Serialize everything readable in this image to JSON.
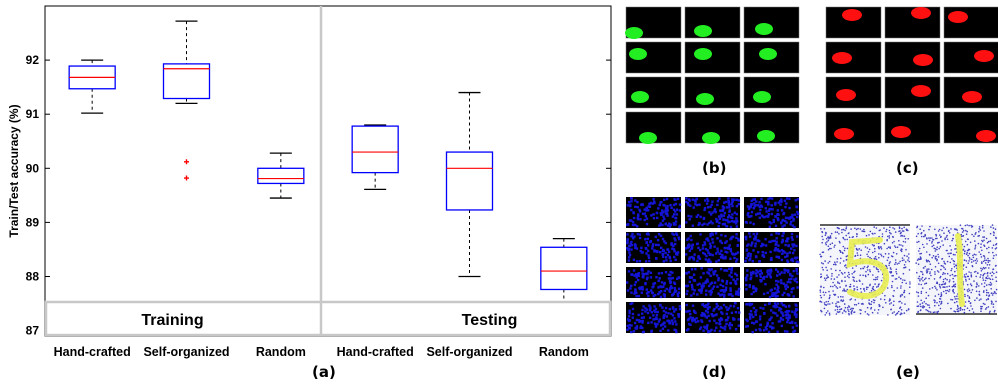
{
  "chart_data": {
    "type": "boxplot",
    "ylabel": "Train/Test accuracy (%)",
    "ylim": [
      86.9,
      93.0
    ],
    "yticks": [
      87,
      88,
      89,
      90,
      91,
      92
    ],
    "groups": [
      {
        "name": "Training",
        "categories": [
          "Hand-crafted",
          "Self-organized",
          "Random"
        ],
        "boxes": [
          {
            "min": 91.02,
            "q1": 91.47,
            "median": 91.68,
            "q3": 91.89,
            "max": 92.0,
            "outliers": []
          },
          {
            "min": 91.2,
            "q1": 91.29,
            "median": 91.84,
            "q3": 91.93,
            "max": 92.72,
            "outliers": [
              90.12,
              89.82
            ]
          },
          {
            "min": 89.45,
            "q1": 89.72,
            "median": 89.81,
            "q3": 90.0,
            "max": 90.28,
            "outliers": []
          }
        ]
      },
      {
        "name": "Testing",
        "categories": [
          "Hand-crafted",
          "Self-organized",
          "Random"
        ],
        "boxes": [
          {
            "min": 89.61,
            "q1": 89.92,
            "median": 90.3,
            "q3": 90.78,
            "max": 90.8,
            "outliers": []
          },
          {
            "min": 88.0,
            "q1": 89.23,
            "median": 90.0,
            "q3": 90.3,
            "max": 91.4,
            "outliers": []
          },
          {
            "min": 87.1,
            "q1": 87.76,
            "median": 88.1,
            "q3": 88.54,
            "max": 88.7,
            "outliers": []
          }
        ]
      }
    ],
    "colors": {
      "box": "#0000ff",
      "median": "#ff0000",
      "outlier": "#ff0000",
      "whisker": "#000000"
    }
  },
  "captions": {
    "a": "(a)",
    "b": "(b)",
    "c": "(c)",
    "d": "(d)",
    "e": "(e)"
  },
  "panels": {
    "b": {
      "color": "#22ee22",
      "background": "#000000"
    },
    "c": {
      "color": "#ff1010",
      "background": "#000000"
    },
    "d": {
      "color": "#1414d8",
      "background": "#000000"
    },
    "e": {
      "color": "#4040c0",
      "digit_color": "#e8ee50"
    }
  }
}
